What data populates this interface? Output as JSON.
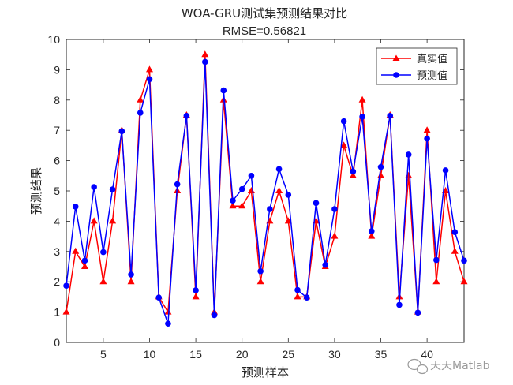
{
  "chart_data": {
    "type": "line",
    "title": "WOA-GRU测试集预测结果对比",
    "subtitle": "RMSE=0.56821",
    "xlabel": "预测样本",
    "ylabel": "预测结果",
    "xlim": [
      1,
      44
    ],
    "ylim": [
      0,
      10
    ],
    "xticks": [
      5,
      10,
      15,
      20,
      25,
      30,
      35,
      40
    ],
    "yticks": [
      0,
      1,
      2,
      3,
      4,
      5,
      6,
      7,
      8,
      9,
      10
    ],
    "grid": false,
    "legend_position": "top-right",
    "x": [
      1,
      2,
      3,
      4,
      5,
      6,
      7,
      8,
      9,
      10,
      11,
      12,
      13,
      14,
      15,
      16,
      17,
      18,
      19,
      20,
      21,
      22,
      23,
      24,
      25,
      26,
      27,
      28,
      29,
      30,
      31,
      32,
      33,
      34,
      35,
      36,
      37,
      38,
      39,
      40,
      41,
      42,
      43,
      44
    ],
    "series": [
      {
        "name": "真实值",
        "color": "#ff0000",
        "marker": "triangle",
        "values": [
          1,
          3,
          2.5,
          4,
          2,
          4,
          7,
          2,
          8,
          9,
          1.5,
          1,
          5,
          7.5,
          1.5,
          9.5,
          1,
          8,
          4.5,
          4.5,
          5,
          2,
          4,
          5,
          4,
          1.5,
          1.5,
          4,
          2.5,
          3.5,
          6.5,
          5.5,
          8,
          3.5,
          5.5,
          7.5,
          1.5,
          5.5,
          1,
          7,
          2,
          5,
          3,
          2
        ]
      },
      {
        "name": "预测值",
        "color": "#0000ff",
        "marker": "circle",
        "values": [
          1.87,
          4.48,
          2.7,
          5.13,
          2.98,
          5.05,
          6.97,
          2.24,
          7.58,
          8.69,
          1.48,
          0.62,
          5.22,
          7.48,
          1.72,
          9.26,
          0.9,
          8.32,
          4.68,
          5.06,
          5.5,
          2.35,
          4.4,
          5.72,
          4.87,
          1.73,
          1.48,
          4.6,
          2.56,
          4.4,
          7.3,
          5.64,
          7.45,
          3.67,
          5.79,
          7.48,
          1.24,
          6.2,
          0.98,
          6.73,
          2.72,
          5.68,
          3.64,
          2.7
        ]
      }
    ]
  },
  "watermark": {
    "text": "天天Matlab"
  }
}
